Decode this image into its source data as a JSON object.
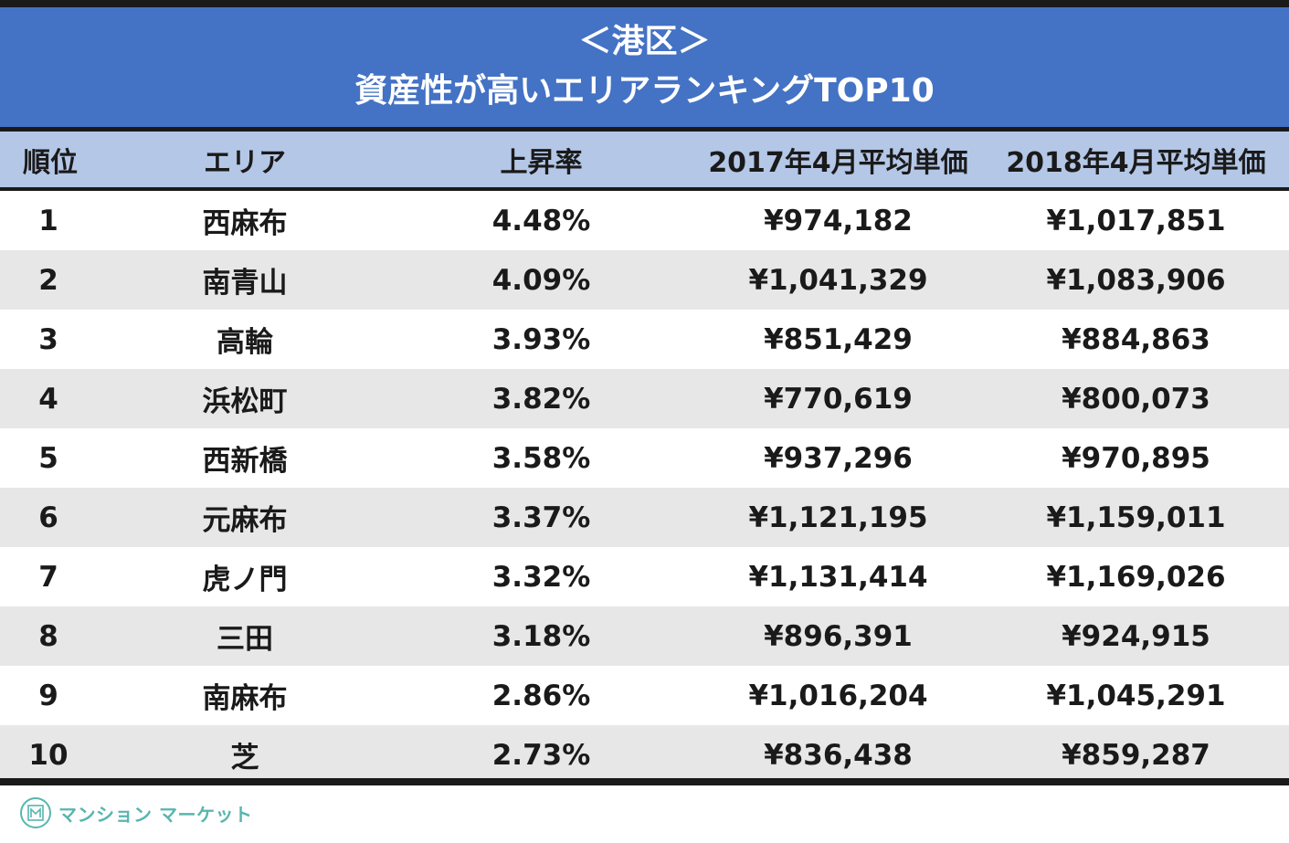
{
  "title": {
    "line1": "＜港区＞",
    "line2": "資産性が高いエリアランキングTOP10"
  },
  "header": {
    "rank": "順位",
    "area": "エリア",
    "rate": "上昇率",
    "price2017": "2017年4月平均単価",
    "price2018": "2018年4月平均単価"
  },
  "rows": [
    {
      "rank": "1",
      "area": "西麻布",
      "rate": "4.48%",
      "price2017": "¥974,182",
      "price2018": "¥1,017,851"
    },
    {
      "rank": "2",
      "area": "南青山",
      "rate": "4.09%",
      "price2017": "¥1,041,329",
      "price2018": "¥1,083,906"
    },
    {
      "rank": "3",
      "area": "高輪",
      "rate": "3.93%",
      "price2017": "¥851,429",
      "price2018": "¥884,863"
    },
    {
      "rank": "4",
      "area": "浜松町",
      "rate": "3.82%",
      "price2017": "¥770,619",
      "price2018": "¥800,073"
    },
    {
      "rank": "5",
      "area": "西新橋",
      "rate": "3.58%",
      "price2017": "¥937,296",
      "price2018": "¥970,895"
    },
    {
      "rank": "6",
      "area": "元麻布",
      "rate": "3.37%",
      "price2017": "¥1,121,195",
      "price2018": "¥1,159,011"
    },
    {
      "rank": "7",
      "area": "虎ノ門",
      "rate": "3.32%",
      "price2017": "¥1,131,414",
      "price2018": "¥1,169,026"
    },
    {
      "rank": "8",
      "area": "三田",
      "rate": "3.18%",
      "price2017": "¥896,391",
      "price2018": "¥924,915"
    },
    {
      "rank": "9",
      "area": "南麻布",
      "rate": "2.86%",
      "price2017": "¥1,016,204",
      "price2018": "¥1,045,291"
    },
    {
      "rank": "10",
      "area": "芝",
      "rate": "2.73%",
      "price2017": "¥836,438",
      "price2018": "¥859,287"
    }
  ],
  "footer": {
    "logo_icon": "mansion-market-logo-icon",
    "logo_text": "マンション マーケット",
    "brand_color": "#57b6ad"
  }
}
